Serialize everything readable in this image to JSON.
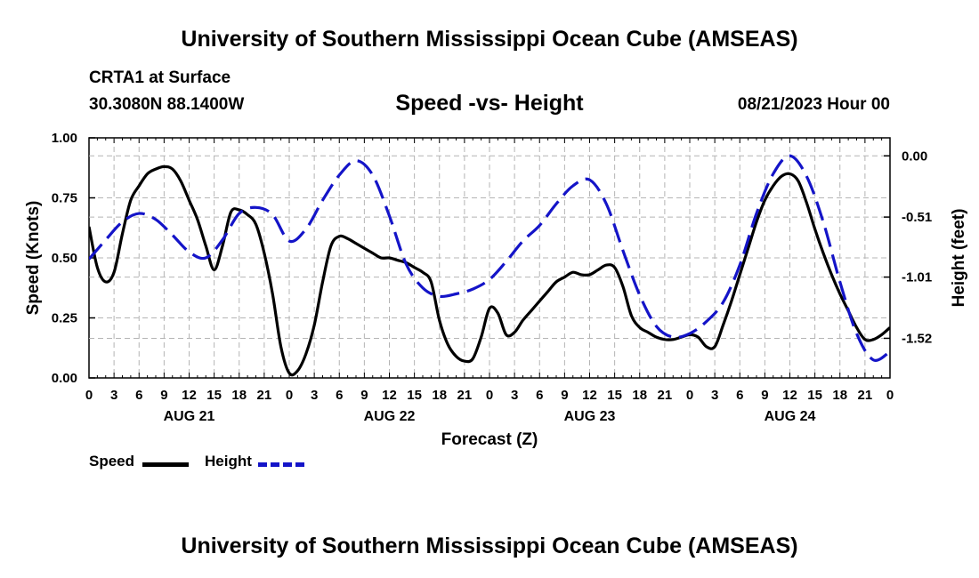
{
  "page_title": "University of Southern Mississippi Ocean Cube (AMSEAS)",
  "footer_title": "University of Southern Mississippi Ocean Cube (AMSEAS)",
  "station": "CRTA1 at Surface",
  "location": "30.3080N  88.1400W",
  "timestamp": "08/21/2023 Hour 00",
  "colors": {
    "speed": "#000000",
    "height": "#1414c8",
    "grid": "#b4b4b4"
  },
  "legend": {
    "speed_label": "Speed",
    "height_label": "Height"
  },
  "chart_data": {
    "type": "line",
    "title": "Speed -vs- Height",
    "xlabel": "Forecast (Z)",
    "ylabel": "Speed (Knots)",
    "y2label": "Height (feet)",
    "xlim": [
      0,
      96
    ],
    "ylim": [
      0,
      1
    ],
    "y2lim": [
      -1.85,
      0.15
    ],
    "hour_ticks": [
      0,
      3,
      6,
      9,
      12,
      15,
      18,
      21,
      24,
      27,
      30,
      33,
      36,
      39,
      42,
      45,
      48,
      51,
      54,
      57,
      60,
      63,
      66,
      69,
      72,
      75,
      78,
      81,
      84,
      87,
      90,
      93,
      96
    ],
    "hour_tick_labels": [
      "0",
      "3",
      "6",
      "9",
      "12",
      "15",
      "18",
      "21",
      "0",
      "3",
      "6",
      "9",
      "12",
      "15",
      "18",
      "21",
      "0",
      "3",
      "6",
      "9",
      "12",
      "15",
      "18",
      "21",
      "0",
      "3",
      "6",
      "9",
      "12",
      "15",
      "18",
      "21",
      "0"
    ],
    "day_labels": [
      {
        "x": 12,
        "label": "AUG 21"
      },
      {
        "x": 36,
        "label": "AUG 22"
      },
      {
        "x": 60,
        "label": "AUG 23"
      },
      {
        "x": 84,
        "label": "AUG 24"
      }
    ],
    "y_ticks": [
      0,
      0.25,
      0.5,
      0.75,
      1.0
    ],
    "y_tick_labels": [
      "0.00",
      "0.25",
      "0.50",
      "0.75",
      "1.00"
    ],
    "y2_ticks": [
      0.0,
      -0.51,
      -1.01,
      -1.52
    ],
    "y2_tick_labels": [
      "0.00",
      "-0.51",
      "-1.01",
      "-1.52"
    ],
    "series": [
      {
        "name": "Speed",
        "axis": "left",
        "x": [
          0,
          1,
          2,
          3,
          4,
          5,
          6,
          7,
          8,
          9,
          10,
          11,
          12,
          13,
          14,
          15,
          16,
          17,
          18,
          19,
          20,
          21,
          22,
          23,
          24,
          25,
          26,
          27,
          28,
          29,
          30,
          31,
          32,
          33,
          34,
          35,
          36,
          37,
          38,
          39,
          40,
          41,
          42,
          43,
          44,
          45,
          46,
          47,
          48,
          49,
          50,
          51,
          52,
          53,
          54,
          55,
          56,
          57,
          58,
          59,
          60,
          61,
          62,
          63,
          64,
          65,
          66,
          67,
          68,
          69,
          70,
          71,
          72,
          73,
          74,
          75,
          76,
          77,
          78,
          79,
          80,
          81,
          82,
          83,
          84,
          85,
          86,
          87,
          88,
          89,
          90,
          91,
          92,
          93,
          94,
          95,
          96
        ],
        "values": [
          0.63,
          0.46,
          0.4,
          0.44,
          0.6,
          0.74,
          0.8,
          0.85,
          0.87,
          0.88,
          0.87,
          0.82,
          0.74,
          0.66,
          0.55,
          0.45,
          0.55,
          0.69,
          0.7,
          0.68,
          0.64,
          0.52,
          0.35,
          0.13,
          0.02,
          0.03,
          0.1,
          0.22,
          0.4,
          0.55,
          0.59,
          0.58,
          0.56,
          0.54,
          0.52,
          0.5,
          0.5,
          0.49,
          0.48,
          0.46,
          0.44,
          0.4,
          0.24,
          0.14,
          0.09,
          0.07,
          0.08,
          0.17,
          0.29,
          0.27,
          0.18,
          0.19,
          0.24,
          0.28,
          0.32,
          0.36,
          0.4,
          0.42,
          0.44,
          0.43,
          0.43,
          0.45,
          0.47,
          0.46,
          0.38,
          0.26,
          0.21,
          0.19,
          0.17,
          0.16,
          0.16,
          0.17,
          0.18,
          0.17,
          0.13,
          0.13,
          0.22,
          0.32,
          0.43,
          0.54,
          0.65,
          0.74,
          0.8,
          0.84,
          0.85,
          0.82,
          0.73,
          0.62,
          0.52,
          0.43,
          0.35,
          0.28,
          0.21,
          0.16,
          0.16,
          0.18,
          0.21
        ]
      },
      {
        "name": "Height",
        "axis": "right",
        "x": [
          0,
          2,
          4,
          6,
          8,
          10,
          12,
          14,
          16,
          18,
          20,
          22,
          24,
          26,
          28,
          30,
          32,
          34,
          36,
          38,
          40,
          42,
          44,
          46,
          48,
          50,
          52,
          54,
          56,
          58,
          60,
          62,
          64,
          66,
          68,
          70,
          72,
          74,
          76,
          78,
          80,
          82,
          84,
          86,
          88,
          90,
          92,
          94,
          96
        ],
        "values": [
          -0.86,
          -0.7,
          -0.55,
          -0.48,
          -0.53,
          -0.66,
          -0.8,
          -0.85,
          -0.7,
          -0.48,
          -0.43,
          -0.49,
          -0.71,
          -0.61,
          -0.37,
          -0.16,
          -0.04,
          -0.16,
          -0.5,
          -0.9,
          -1.1,
          -1.17,
          -1.15,
          -1.11,
          -1.03,
          -0.88,
          -0.71,
          -0.58,
          -0.4,
          -0.25,
          -0.2,
          -0.4,
          -0.79,
          -1.16,
          -1.42,
          -1.51,
          -1.48,
          -1.38,
          -1.22,
          -0.91,
          -0.48,
          -0.15,
          0.0,
          -0.17,
          -0.55,
          -1.05,
          -1.48,
          -1.7,
          -1.63
        ]
      }
    ]
  }
}
